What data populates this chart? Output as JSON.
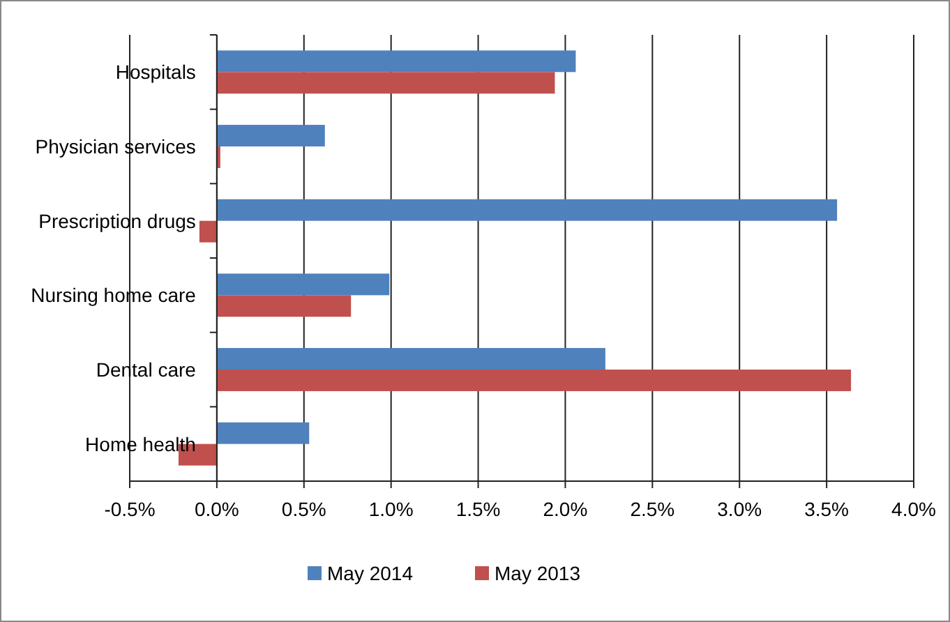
{
  "chart_data": {
    "type": "bar",
    "orientation": "horizontal",
    "categories": [
      "Hospitals",
      "Physician services",
      "Prescription drugs",
      "Nursing home care",
      "Dental care",
      "Home health"
    ],
    "series": [
      {
        "name": "May 2014",
        "color": "#4f81bd",
        "values": [
          2.06,
          0.62,
          3.56,
          0.99,
          2.23,
          0.53
        ]
      },
      {
        "name": "May 2013",
        "color": "#c0504d",
        "values": [
          1.94,
          0.02,
          -0.1,
          0.77,
          3.64,
          -0.22
        ]
      }
    ],
    "xlim": [
      -0.5,
      4.0
    ],
    "xticks": [
      {
        "value": -0.5,
        "label": "-0.5%"
      },
      {
        "value": 0,
        "label": "0.0%"
      },
      {
        "value": 0.5,
        "label": "0.5%"
      },
      {
        "value": 1,
        "label": "1.0%"
      },
      {
        "value": 1.5,
        "label": "1.5%"
      },
      {
        "value": 2,
        "label": "2.0%"
      },
      {
        "value": 2.5,
        "label": "2.5%"
      },
      {
        "value": 3,
        "label": "3.0%"
      },
      {
        "value": 3.5,
        "label": "3.5%"
      },
      {
        "value": 4,
        "label": "4.0%"
      }
    ],
    "grid": "x",
    "legend": "bottom"
  }
}
